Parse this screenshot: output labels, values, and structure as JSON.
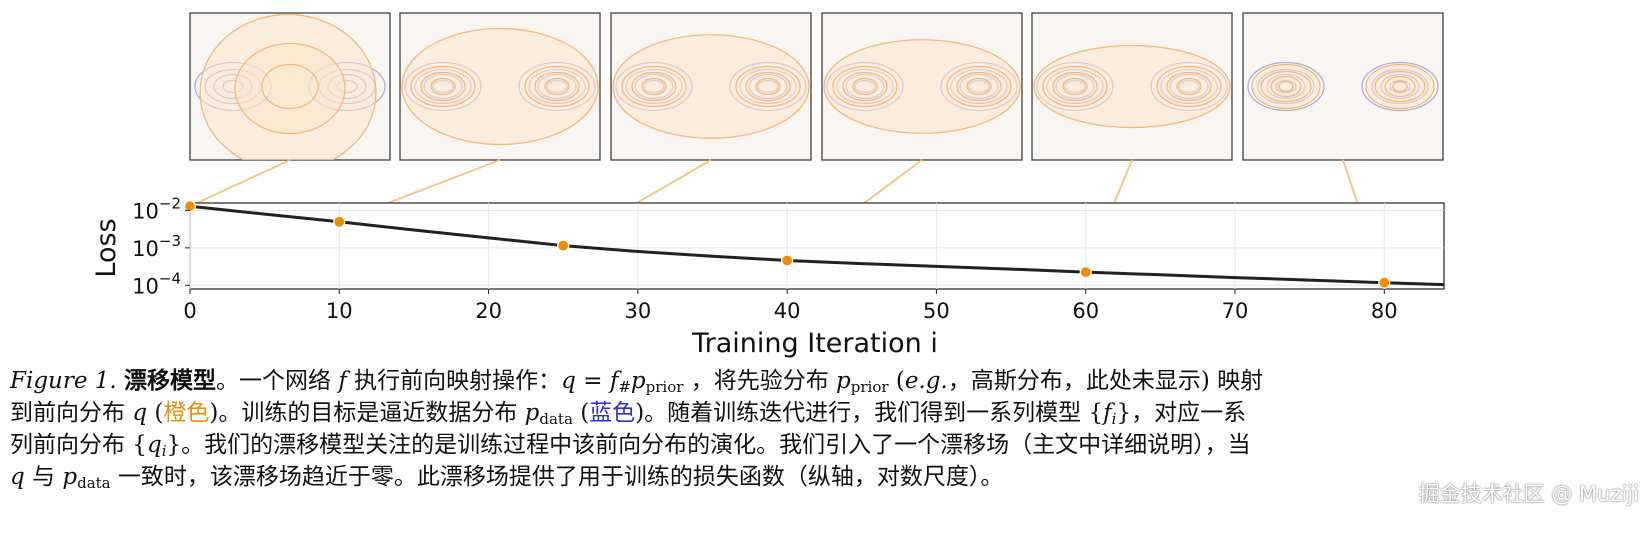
{
  "chart_data": {
    "type": "line",
    "xlabel": "Training Iteration i",
    "ylabel": "Loss",
    "xlim": [
      0,
      84
    ],
    "ylim_log10": [
      -4.1,
      -1.8
    ],
    "y_scale": "log",
    "grid": true,
    "x_ticks": [
      "0",
      "10",
      "20",
      "30",
      "40",
      "50",
      "60",
      "70",
      "80"
    ],
    "y_ticks": [
      {
        "base": "10",
        "exp": "−2",
        "value": 0.01
      },
      {
        "base": "10",
        "exp": "−3",
        "value": 0.001
      },
      {
        "base": "10",
        "exp": "−4",
        "value": 0.0001
      }
    ],
    "series": [
      {
        "x": [
          0,
          5,
          10,
          15,
          20,
          25,
          30,
          35,
          40,
          45,
          50,
          55,
          60,
          65,
          70,
          75,
          80,
          84
        ],
        "y": [
          0.013,
          0.008,
          0.005,
          0.003,
          0.00185,
          0.00115,
          0.0008,
          0.0006,
          0.00046,
          0.00038,
          0.00032,
          0.00027,
          0.000225,
          0.00019,
          0.00016,
          0.000137,
          0.000117,
          0.000104
        ]
      }
    ],
    "highlight_points": [
      {
        "x": 0,
        "y": 0.013
      },
      {
        "x": 10,
        "y": 0.005
      },
      {
        "x": 25,
        "y": 0.00115
      },
      {
        "x": 40,
        "y": 0.00046
      },
      {
        "x": 60,
        "y": 0.000225
      },
      {
        "x": 80,
        "y": 0.000117
      }
    ],
    "colors": {
      "line": "#222222",
      "points": "#f08c00",
      "connector": "#f6c58a",
      "q_fill": "#fbe6cc",
      "q_contour": "#f4b97a",
      "p_contour": "#aab0e0",
      "panel_bg": "#f8f5f2"
    }
  },
  "panels": [
    {
      "iteration": 0
    },
    {
      "iteration": 10
    },
    {
      "iteration": 25
    },
    {
      "iteration": 40
    },
    {
      "iteration": 60
    },
    {
      "iteration": 80
    }
  ],
  "caption": {
    "fig_label": "Figure 1.",
    "title": "漂移模型",
    "l1_a": "。一个网络 ",
    "f": "f",
    "l1_b": " 执行前向映射操作：",
    "q": "q",
    "eq": " = ",
    "f2": "f",
    "hash": "#",
    "p": "p",
    "prior": "prior",
    "l1_c": " ，将先验分布 ",
    "l1_d": " (",
    "eg": "e.g.",
    "l1_e": "，高斯分布，此处未显示) 映射",
    "l2_a": "到前向分布 ",
    "l2_b": " (",
    "orange_word": "橙色",
    "l2_c": ")。训练的目标是逼近数据分布 ",
    "data_sub": "data",
    "l2_d": " (",
    "blue_word": "蓝色",
    "l2_e": ")。随着训练迭代进行，我们得到一系列模型 {",
    "fi": "f",
    "i": "i",
    "l2_f": "}，对应一系",
    "l3_a": "列前向分布 {",
    "qi": "q",
    "l3_b": "}。我们的漂移模型关注的是训练过程中该前向分布的演化。我们引入了一个漂移场（主文中详细说明），当",
    "l4_a": " 与 ",
    "l4_b": " 一致时，该漂移场趋近于零。此漂移场提供了用于训练的损失函数（纵轴，对数尺度）。"
  },
  "watermark": "掘金技术社区 @ Muziji"
}
